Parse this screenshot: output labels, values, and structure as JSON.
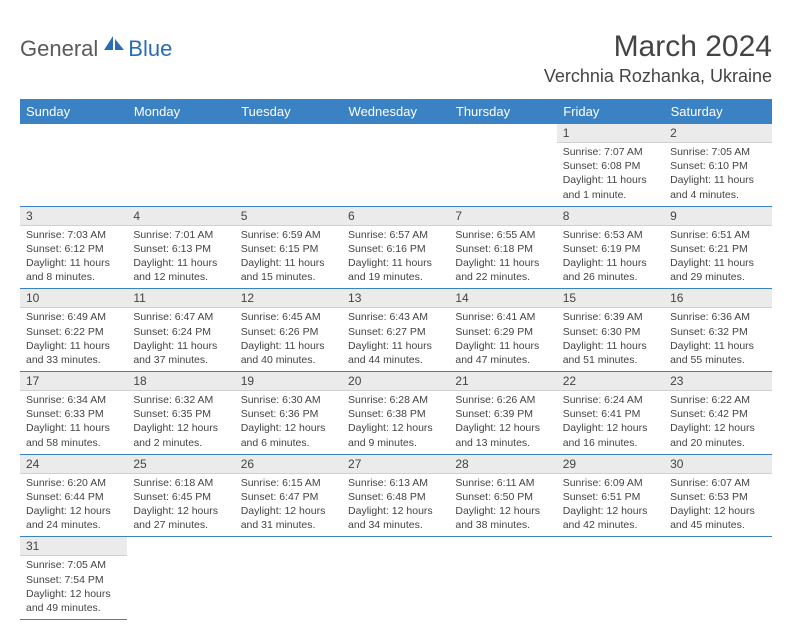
{
  "logo": {
    "general": "General",
    "blue": "Blue"
  },
  "title": "March 2024",
  "location": "Verchnia Rozhanka, Ukraine",
  "colors": {
    "header_bg": "#3b82c4",
    "header_fg": "#ffffff",
    "daynum_bg": "#ebebeb",
    "text": "#444444",
    "rule": "#3b82c4",
    "logo_gray": "#5a5a5a",
    "logo_blue": "#2a6db5"
  },
  "day_headers": [
    "Sunday",
    "Monday",
    "Tuesday",
    "Wednesday",
    "Thursday",
    "Friday",
    "Saturday"
  ],
  "weeks": [
    [
      null,
      null,
      null,
      null,
      null,
      {
        "n": "1",
        "sunrise": "Sunrise: 7:07 AM",
        "sunset": "Sunset: 6:08 PM",
        "daylight": "Daylight: 11 hours and 1 minute."
      },
      {
        "n": "2",
        "sunrise": "Sunrise: 7:05 AM",
        "sunset": "Sunset: 6:10 PM",
        "daylight": "Daylight: 11 hours and 4 minutes."
      }
    ],
    [
      {
        "n": "3",
        "sunrise": "Sunrise: 7:03 AM",
        "sunset": "Sunset: 6:12 PM",
        "daylight": "Daylight: 11 hours and 8 minutes."
      },
      {
        "n": "4",
        "sunrise": "Sunrise: 7:01 AM",
        "sunset": "Sunset: 6:13 PM",
        "daylight": "Daylight: 11 hours and 12 minutes."
      },
      {
        "n": "5",
        "sunrise": "Sunrise: 6:59 AM",
        "sunset": "Sunset: 6:15 PM",
        "daylight": "Daylight: 11 hours and 15 minutes."
      },
      {
        "n": "6",
        "sunrise": "Sunrise: 6:57 AM",
        "sunset": "Sunset: 6:16 PM",
        "daylight": "Daylight: 11 hours and 19 minutes."
      },
      {
        "n": "7",
        "sunrise": "Sunrise: 6:55 AM",
        "sunset": "Sunset: 6:18 PM",
        "daylight": "Daylight: 11 hours and 22 minutes."
      },
      {
        "n": "8",
        "sunrise": "Sunrise: 6:53 AM",
        "sunset": "Sunset: 6:19 PM",
        "daylight": "Daylight: 11 hours and 26 minutes."
      },
      {
        "n": "9",
        "sunrise": "Sunrise: 6:51 AM",
        "sunset": "Sunset: 6:21 PM",
        "daylight": "Daylight: 11 hours and 29 minutes."
      }
    ],
    [
      {
        "n": "10",
        "sunrise": "Sunrise: 6:49 AM",
        "sunset": "Sunset: 6:22 PM",
        "daylight": "Daylight: 11 hours and 33 minutes."
      },
      {
        "n": "11",
        "sunrise": "Sunrise: 6:47 AM",
        "sunset": "Sunset: 6:24 PM",
        "daylight": "Daylight: 11 hours and 37 minutes."
      },
      {
        "n": "12",
        "sunrise": "Sunrise: 6:45 AM",
        "sunset": "Sunset: 6:26 PM",
        "daylight": "Daylight: 11 hours and 40 minutes."
      },
      {
        "n": "13",
        "sunrise": "Sunrise: 6:43 AM",
        "sunset": "Sunset: 6:27 PM",
        "daylight": "Daylight: 11 hours and 44 minutes."
      },
      {
        "n": "14",
        "sunrise": "Sunrise: 6:41 AM",
        "sunset": "Sunset: 6:29 PM",
        "daylight": "Daylight: 11 hours and 47 minutes."
      },
      {
        "n": "15",
        "sunrise": "Sunrise: 6:39 AM",
        "sunset": "Sunset: 6:30 PM",
        "daylight": "Daylight: 11 hours and 51 minutes."
      },
      {
        "n": "16",
        "sunrise": "Sunrise: 6:36 AM",
        "sunset": "Sunset: 6:32 PM",
        "daylight": "Daylight: 11 hours and 55 minutes."
      }
    ],
    [
      {
        "n": "17",
        "sunrise": "Sunrise: 6:34 AM",
        "sunset": "Sunset: 6:33 PM",
        "daylight": "Daylight: 11 hours and 58 minutes."
      },
      {
        "n": "18",
        "sunrise": "Sunrise: 6:32 AM",
        "sunset": "Sunset: 6:35 PM",
        "daylight": "Daylight: 12 hours and 2 minutes."
      },
      {
        "n": "19",
        "sunrise": "Sunrise: 6:30 AM",
        "sunset": "Sunset: 6:36 PM",
        "daylight": "Daylight: 12 hours and 6 minutes."
      },
      {
        "n": "20",
        "sunrise": "Sunrise: 6:28 AM",
        "sunset": "Sunset: 6:38 PM",
        "daylight": "Daylight: 12 hours and 9 minutes."
      },
      {
        "n": "21",
        "sunrise": "Sunrise: 6:26 AM",
        "sunset": "Sunset: 6:39 PM",
        "daylight": "Daylight: 12 hours and 13 minutes."
      },
      {
        "n": "22",
        "sunrise": "Sunrise: 6:24 AM",
        "sunset": "Sunset: 6:41 PM",
        "daylight": "Daylight: 12 hours and 16 minutes."
      },
      {
        "n": "23",
        "sunrise": "Sunrise: 6:22 AM",
        "sunset": "Sunset: 6:42 PM",
        "daylight": "Daylight: 12 hours and 20 minutes."
      }
    ],
    [
      {
        "n": "24",
        "sunrise": "Sunrise: 6:20 AM",
        "sunset": "Sunset: 6:44 PM",
        "daylight": "Daylight: 12 hours and 24 minutes."
      },
      {
        "n": "25",
        "sunrise": "Sunrise: 6:18 AM",
        "sunset": "Sunset: 6:45 PM",
        "daylight": "Daylight: 12 hours and 27 minutes."
      },
      {
        "n": "26",
        "sunrise": "Sunrise: 6:15 AM",
        "sunset": "Sunset: 6:47 PM",
        "daylight": "Daylight: 12 hours and 31 minutes."
      },
      {
        "n": "27",
        "sunrise": "Sunrise: 6:13 AM",
        "sunset": "Sunset: 6:48 PM",
        "daylight": "Daylight: 12 hours and 34 minutes."
      },
      {
        "n": "28",
        "sunrise": "Sunrise: 6:11 AM",
        "sunset": "Sunset: 6:50 PM",
        "daylight": "Daylight: 12 hours and 38 minutes."
      },
      {
        "n": "29",
        "sunrise": "Sunrise: 6:09 AM",
        "sunset": "Sunset: 6:51 PM",
        "daylight": "Daylight: 12 hours and 42 minutes."
      },
      {
        "n": "30",
        "sunrise": "Sunrise: 6:07 AM",
        "sunset": "Sunset: 6:53 PM",
        "daylight": "Daylight: 12 hours and 45 minutes."
      }
    ],
    [
      {
        "n": "31",
        "sunrise": "Sunrise: 7:05 AM",
        "sunset": "Sunset: 7:54 PM",
        "daylight": "Daylight: 12 hours and 49 minutes."
      },
      null,
      null,
      null,
      null,
      null,
      null
    ]
  ]
}
